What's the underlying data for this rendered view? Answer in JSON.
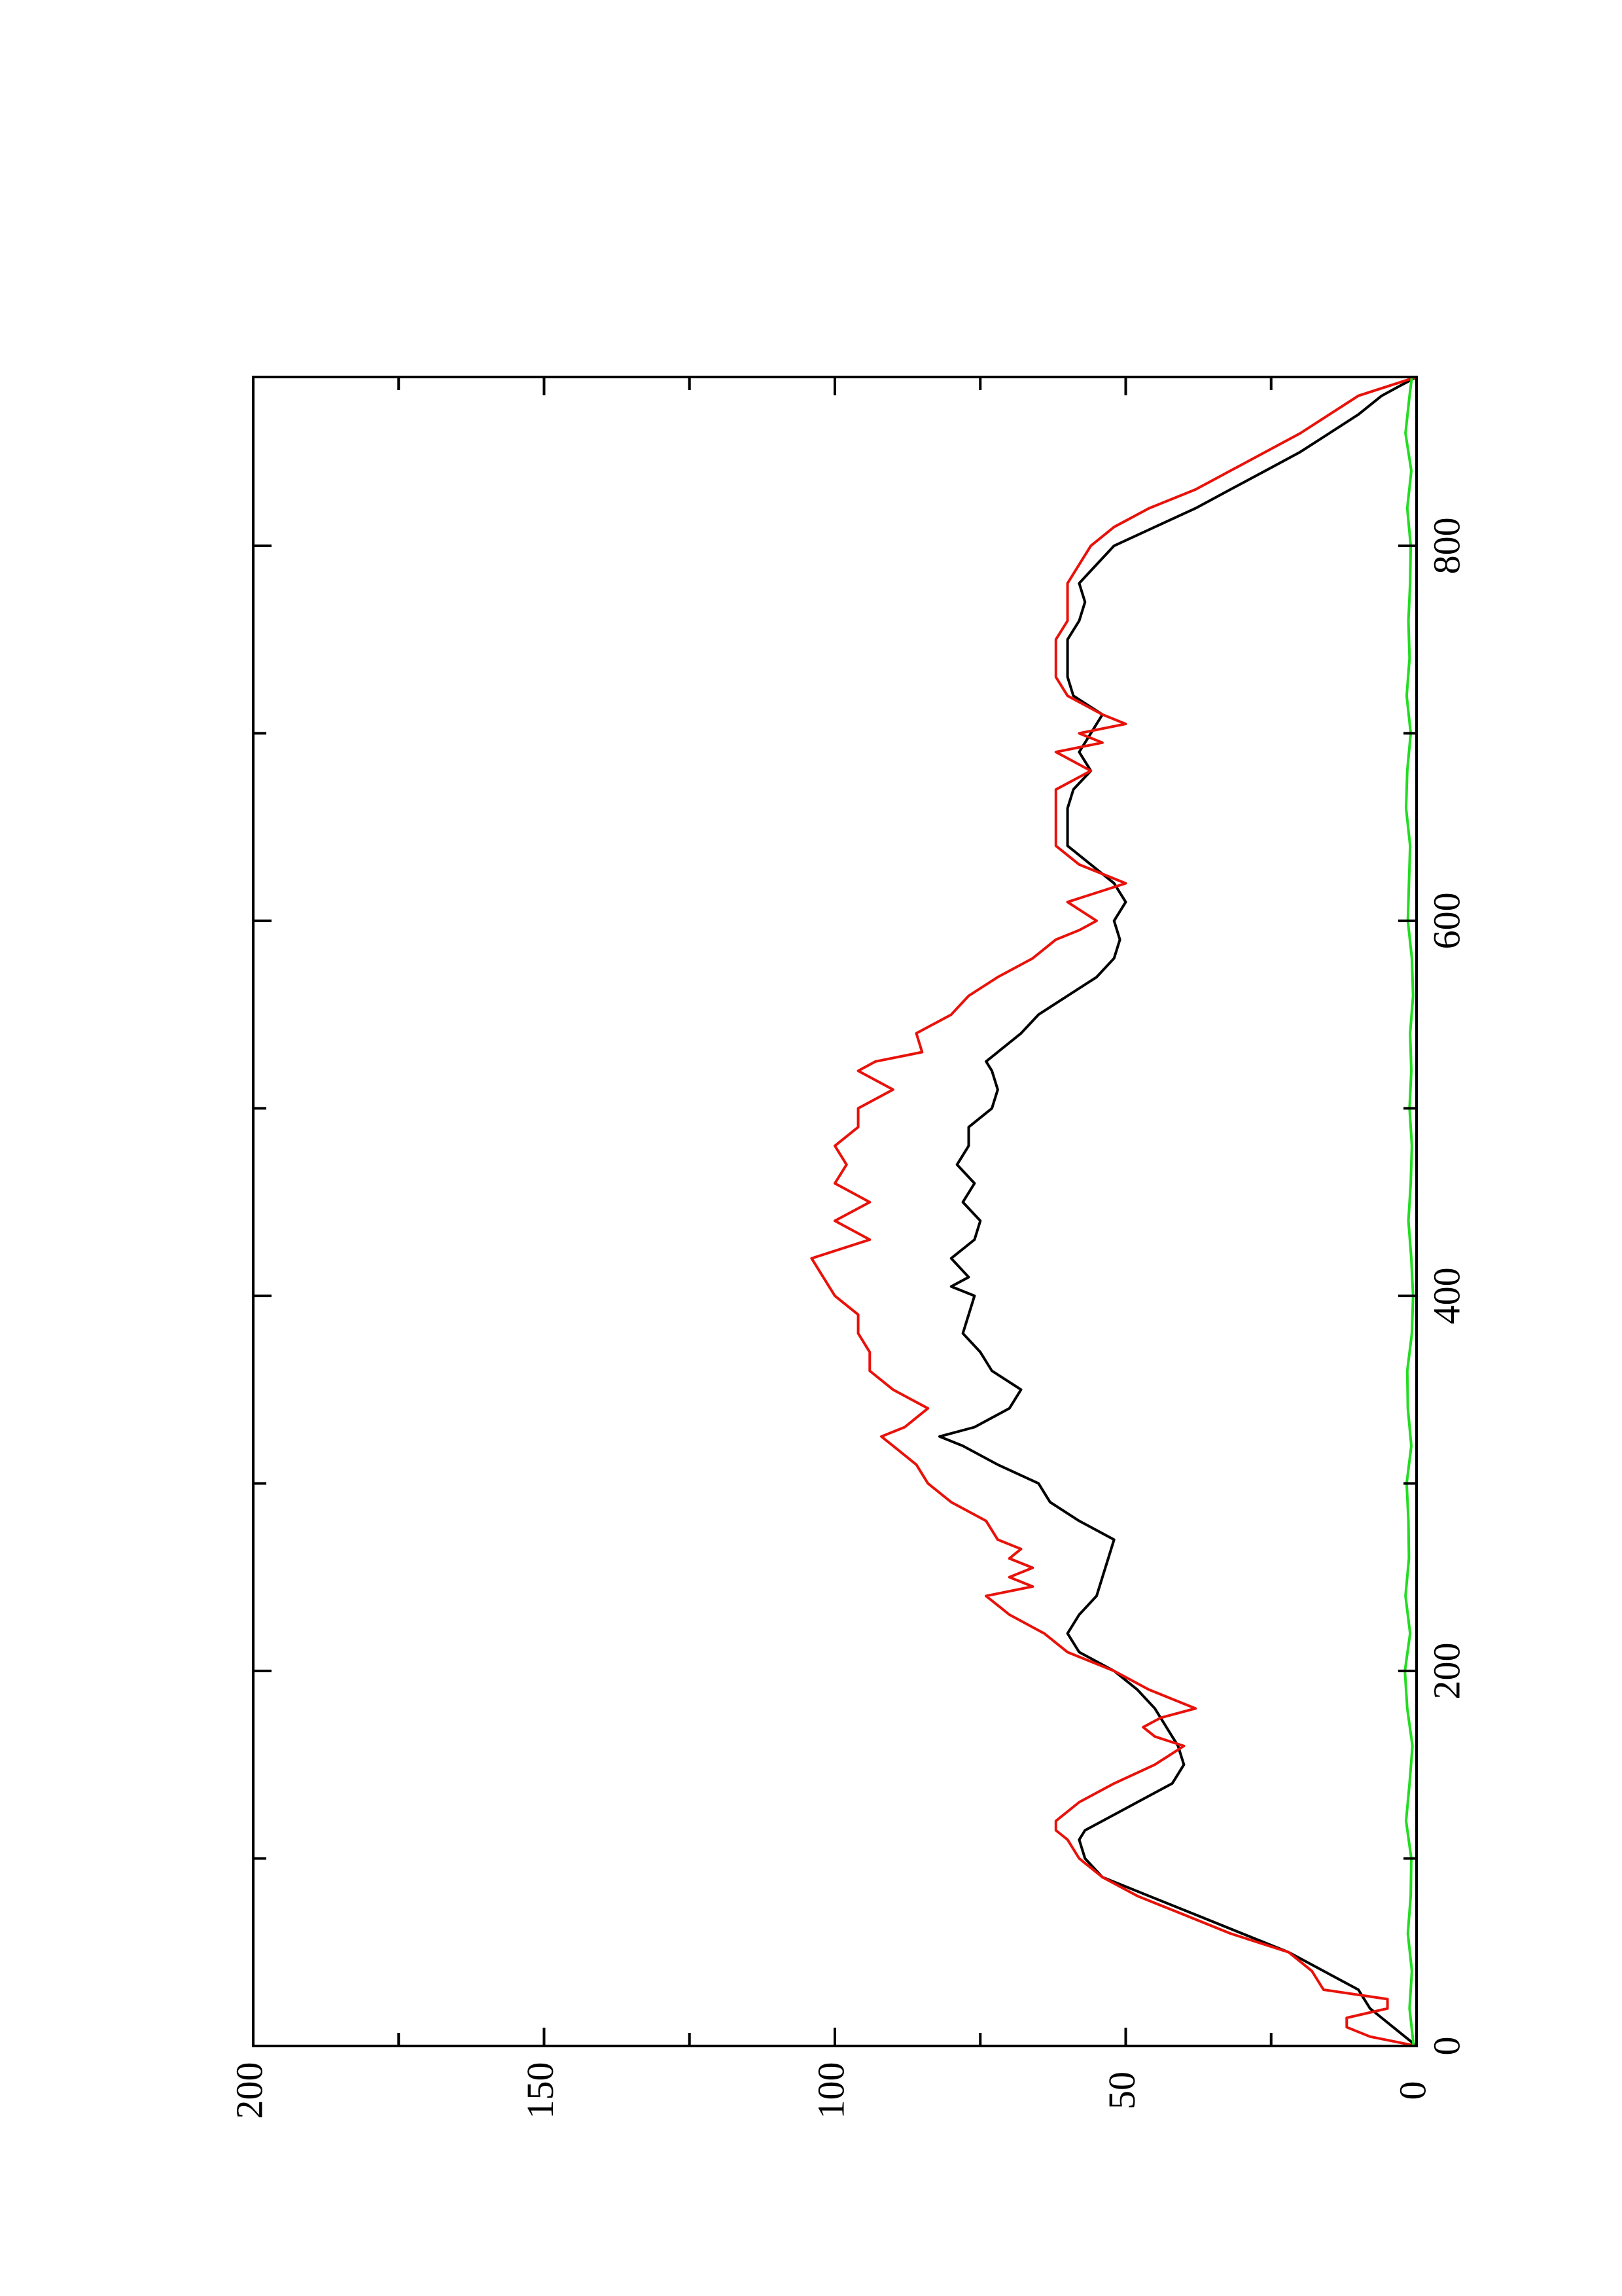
{
  "chart_data": {
    "type": "line",
    "orientation": "rotated-90-counterclockwise",
    "title": "",
    "xlabel": "",
    "ylabel": "",
    "xlim": [
      0,
      890
    ],
    "ylim": [
      0,
      200
    ],
    "xticks": [
      0,
      200,
      400,
      600,
      800
    ],
    "yticks": [
      0,
      50,
      100,
      150,
      200
    ],
    "grid": false,
    "legend": "none",
    "series": [
      {
        "color": "#000000",
        "x": [
          0,
          5,
          10,
          15,
          20,
          25,
          30,
          40,
          50,
          60,
          70,
          80,
          90,
          100,
          110,
          115,
          120,
          130,
          140,
          150,
          160,
          170,
          180,
          190,
          200,
          210,
          220,
          230,
          240,
          250,
          260,
          270,
          280,
          290,
          300,
          310,
          320,
          325,
          330,
          340,
          350,
          360,
          370,
          380,
          390,
          400,
          405,
          410,
          420,
          430,
          440,
          450,
          460,
          470,
          480,
          490,
          500,
          510,
          520,
          525,
          530,
          540,
          550,
          560,
          570,
          580,
          590,
          600,
          610,
          620,
          630,
          640,
          650,
          660,
          670,
          680,
          690,
          700,
          710,
          720,
          730,
          740,
          750,
          760,
          770,
          780,
          790,
          800,
          810,
          820,
          830,
          840,
          850,
          860,
          870,
          880,
          885,
          890
        ],
        "values": [
          0,
          2,
          4,
          6,
          8,
          9,
          10,
          16,
          22,
          30,
          38,
          46,
          54,
          57,
          58,
          57,
          54,
          48,
          42,
          40,
          41,
          43,
          45,
          48,
          52,
          58,
          60,
          58,
          55,
          54,
          53,
          52,
          58,
          63,
          65,
          72,
          78,
          82,
          76,
          70,
          68,
          73,
          75,
          78,
          77,
          76,
          80,
          77,
          80,
          76,
          75,
          78,
          76,
          79,
          77,
          77,
          73,
          72,
          73,
          74,
          72,
          68,
          65,
          60,
          55,
          52,
          51,
          52,
          50,
          52,
          56,
          60,
          60,
          60,
          59,
          56,
          58,
          56,
          54,
          59,
          60,
          60,
          60,
          58,
          57,
          58,
          55,
          52,
          45,
          38,
          32,
          26,
          20,
          15,
          10,
          6,
          3,
          0
        ]
      },
      {
        "color": "#e8120a",
        "x": [
          0,
          5,
          10,
          15,
          20,
          25,
          30,
          40,
          50,
          60,
          70,
          80,
          90,
          100,
          110,
          115,
          120,
          130,
          140,
          150,
          160,
          165,
          170,
          175,
          180,
          190,
          200,
          210,
          220,
          230,
          240,
          245,
          250,
          255,
          260,
          265,
          270,
          280,
          290,
          300,
          310,
          320,
          325,
          330,
          340,
          350,
          360,
          370,
          380,
          390,
          400,
          410,
          420,
          430,
          440,
          450,
          460,
          470,
          480,
          490,
          500,
          510,
          520,
          525,
          530,
          540,
          550,
          560,
          570,
          580,
          590,
          595,
          600,
          610,
          620,
          630,
          640,
          650,
          660,
          670,
          680,
          690,
          695,
          700,
          705,
          710,
          720,
          730,
          740,
          750,
          760,
          770,
          780,
          790,
          800,
          810,
          820,
          830,
          840,
          850,
          860,
          870,
          880,
          885,
          890
        ],
        "values": [
          0,
          8,
          12,
          12,
          5,
          5,
          16,
          18,
          22,
          32,
          40,
          48,
          54,
          58,
          60,
          62,
          62,
          58,
          52,
          45,
          40,
          45,
          47,
          44,
          38,
          46,
          52,
          60,
          64,
          70,
          74,
          66,
          70,
          66,
          70,
          68,
          72,
          74,
          80,
          84,
          86,
          90,
          92,
          88,
          84,
          90,
          94,
          94,
          96,
          96,
          100,
          102,
          104,
          94,
          100,
          94,
          100,
          98,
          100,
          96,
          96,
          90,
          96,
          93,
          85,
          86,
          80,
          77,
          72,
          66,
          62,
          58,
          55,
          60,
          50,
          58,
          62,
          62,
          62,
          62,
          56,
          62,
          54,
          58,
          50,
          54,
          60,
          62,
          62,
          62,
          60,
          60,
          60,
          58,
          56,
          52,
          46,
          38,
          32,
          26,
          20,
          15,
          10,
          5,
          0
        ]
      },
      {
        "color": "#22dd22",
        "x": [
          0,
          20,
          40,
          60,
          80,
          100,
          120,
          140,
          160,
          180,
          200,
          220,
          240,
          260,
          280,
          300,
          320,
          340,
          360,
          380,
          400,
          420,
          440,
          460,
          480,
          500,
          520,
          540,
          560,
          580,
          600,
          620,
          640,
          660,
          680,
          700,
          720,
          740,
          760,
          780,
          800,
          820,
          840,
          860,
          880,
          890
        ],
        "values": [
          0.5,
          1.2,
          0.8,
          1.5,
          1.0,
          0.9,
          1.8,
          1.2,
          0.7,
          1.6,
          2.0,
          1.1,
          1.9,
          1.3,
          1.4,
          1.7,
          0.9,
          1.5,
          1.6,
          0.8,
          0.6,
          0.9,
          1.4,
          1.0,
          0.8,
          1.2,
          0.9,
          1.1,
          0.6,
          0.8,
          1.5,
          1.3,
          1.1,
          1.8,
          1.6,
          1.0,
          1.7,
          1.2,
          1.4,
          1.1,
          1.0,
          1.6,
          0.9,
          1.9,
          1.2,
          0.8
        ]
      }
    ]
  }
}
